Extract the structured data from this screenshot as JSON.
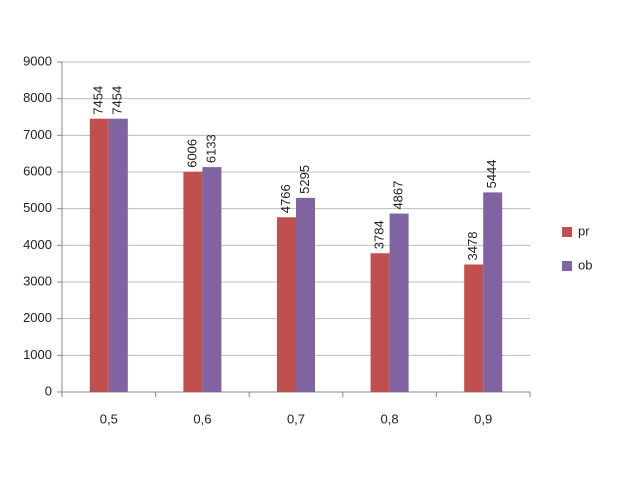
{
  "chart_data": {
    "type": "bar",
    "categories": [
      "0,5",
      "0,6",
      "0,7",
      "0,8",
      "0,9"
    ],
    "series": [
      {
        "name": "pr",
        "color": "#c0504d",
        "values": [
          7454,
          6006,
          4766,
          3784,
          3478
        ]
      },
      {
        "name": "ob",
        "color": "#8064a2",
        "values": [
          7454,
          6133,
          5295,
          4867,
          5444
        ]
      }
    ],
    "ylim": [
      0,
      9000
    ],
    "yticks": [
      0,
      1000,
      2000,
      3000,
      4000,
      5000,
      6000,
      7000,
      8000,
      9000
    ],
    "grid": true,
    "legend": "right"
  }
}
